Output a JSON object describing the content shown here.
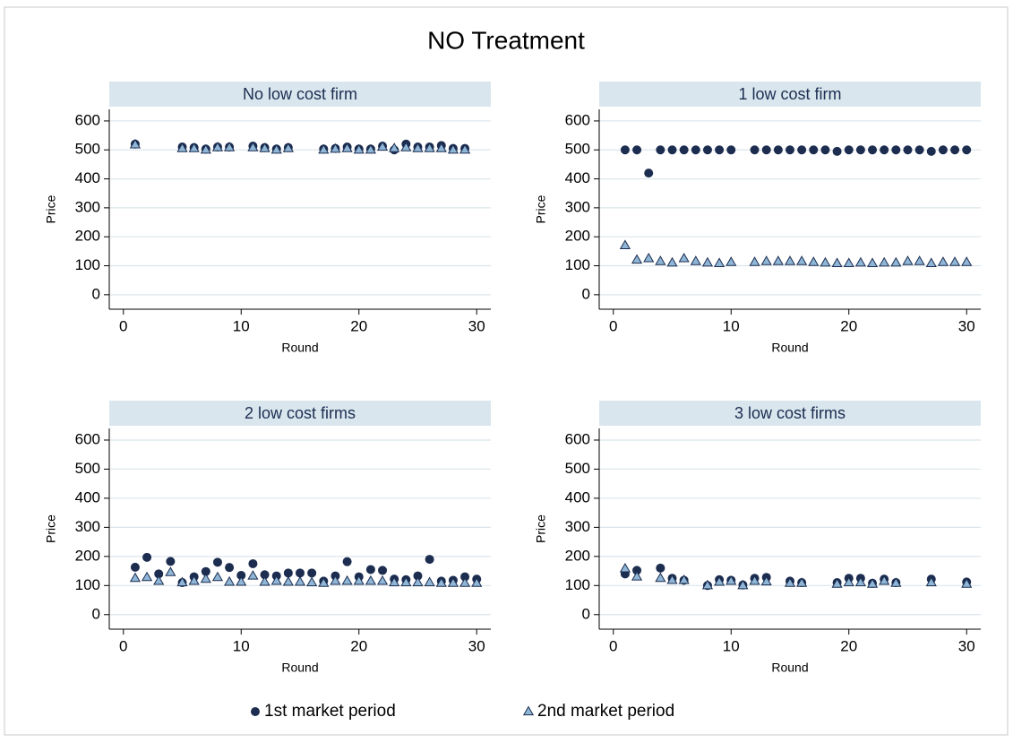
{
  "title": "NO Treatment",
  "chart_data": [
    {
      "type": "scatter",
      "title": "No low cost firm",
      "xlabel": "Round",
      "ylabel": "Price",
      "x": [
        1,
        5,
        6,
        7,
        8,
        9,
        11,
        12,
        13,
        14,
        17,
        18,
        19,
        20,
        21,
        22,
        23,
        24,
        25,
        26,
        27,
        28,
        29
      ],
      "series": [
        {
          "name": "1st market period",
          "color": "#1c2d50",
          "marker": "circle",
          "values": [
            520,
            510,
            508,
            503,
            510,
            510,
            513,
            508,
            503,
            508,
            503,
            505,
            510,
            503,
            503,
            513,
            500,
            520,
            510,
            510,
            515,
            505,
            505
          ]
        },
        {
          "name": "2nd market period",
          "color": "#8fb6d6",
          "marker": "triangle",
          "values": [
            518,
            505,
            505,
            500,
            508,
            508,
            508,
            505,
            500,
            505,
            500,
            503,
            505,
            500,
            500,
            510,
            505,
            508,
            505,
            505,
            505,
            500,
            500
          ]
        }
      ],
      "xlim": [
        -1.2,
        31.2
      ],
      "ylim": [
        -50,
        640
      ],
      "xticks": [
        0,
        10,
        20,
        30
      ],
      "yticks": [
        0,
        100,
        200,
        300,
        400,
        500,
        600
      ],
      "grid": true
    },
    {
      "type": "scatter",
      "title": "1 low cost firm",
      "xlabel": "Round",
      "ylabel": "Price",
      "x": [
        1,
        2,
        3,
        4,
        5,
        6,
        7,
        8,
        9,
        10,
        12,
        13,
        14,
        15,
        16,
        17,
        18,
        19,
        20,
        21,
        22,
        23,
        24,
        25,
        26,
        27,
        28,
        29,
        30
      ],
      "series": [
        {
          "name": "1st market period",
          "color": "#1c2d50",
          "marker": "circle",
          "values": [
            500,
            500,
            420,
            500,
            500,
            500,
            500,
            500,
            500,
            500,
            500,
            500,
            500,
            500,
            500,
            500,
            500,
            495,
            500,
            500,
            500,
            500,
            500,
            500,
            500,
            495,
            500,
            500,
            500
          ]
        },
        {
          "name": "2nd market period",
          "color": "#8fb6d6",
          "marker": "triangle",
          "values": [
            170,
            120,
            125,
            115,
            110,
            125,
            115,
            110,
            108,
            112,
            112,
            115,
            115,
            115,
            115,
            112,
            110,
            108,
            108,
            110,
            108,
            110,
            110,
            115,
            115,
            108,
            112,
            112,
            112
          ]
        }
      ],
      "xlim": [
        -1.2,
        31.2
      ],
      "ylim": [
        -50,
        640
      ],
      "xticks": [
        0,
        10,
        20,
        30
      ],
      "yticks": [
        0,
        100,
        200,
        300,
        400,
        500,
        600
      ],
      "grid": true
    },
    {
      "type": "scatter",
      "title": "2 low cost firms",
      "xlabel": "Round",
      "ylabel": "Price",
      "x": [
        1,
        2,
        3,
        4,
        5,
        6,
        7,
        8,
        9,
        10,
        11,
        12,
        13,
        14,
        15,
        16,
        17,
        18,
        19,
        20,
        21,
        22,
        23,
        24,
        25,
        26,
        27,
        28,
        29,
        30
      ],
      "series": [
        {
          "name": "1st market period",
          "color": "#1c2d50",
          "marker": "circle",
          "values": [
            163,
            197,
            140,
            183,
            110,
            130,
            148,
            180,
            162,
            135,
            175,
            137,
            133,
            143,
            143,
            143,
            115,
            133,
            182,
            130,
            155,
            152,
            122,
            120,
            133,
            190,
            115,
            118,
            130,
            122
          ]
        },
        {
          "name": "2nd market period",
          "color": "#8fb6d6",
          "marker": "triangle",
          "values": [
            125,
            128,
            115,
            145,
            110,
            115,
            122,
            128,
            112,
            112,
            133,
            112,
            115,
            112,
            112,
            110,
            108,
            115,
            115,
            115,
            115,
            115,
            110,
            110,
            110,
            110,
            108,
            108,
            108,
            108
          ]
        }
      ],
      "xlim": [
        -1.2,
        31.2
      ],
      "ylim": [
        -50,
        640
      ],
      "xticks": [
        0,
        10,
        20,
        30
      ],
      "yticks": [
        0,
        100,
        200,
        300,
        400,
        500,
        600
      ],
      "grid": true
    },
    {
      "type": "scatter",
      "title": "3 low cost firms",
      "xlabel": "Round",
      "ylabel": "Price",
      "x": [
        1,
        2,
        4,
        5,
        6,
        8,
        9,
        10,
        11,
        12,
        13,
        15,
        16,
        19,
        20,
        21,
        22,
        23,
        24,
        27,
        30
      ],
      "series": [
        {
          "name": "1st market period",
          "color": "#1c2d50",
          "marker": "circle",
          "values": [
            140,
            152,
            160,
            125,
            118,
            100,
            120,
            118,
            102,
            125,
            128,
            115,
            110,
            110,
            125,
            125,
            108,
            122,
            110,
            122,
            112
          ]
        },
        {
          "name": "2nd market period",
          "color": "#8fb6d6",
          "marker": "triangle",
          "values": [
            158,
            130,
            125,
            118,
            118,
            100,
            112,
            115,
            100,
            115,
            113,
            108,
            108,
            105,
            110,
            110,
            105,
            115,
            108,
            110,
            105
          ]
        }
      ],
      "xlim": [
        -1.2,
        31.2
      ],
      "ylim": [
        -50,
        640
      ],
      "xticks": [
        0,
        10,
        20,
        30
      ],
      "yticks": [
        0,
        100,
        200,
        300,
        400,
        500,
        600
      ],
      "grid": true
    }
  ]
}
